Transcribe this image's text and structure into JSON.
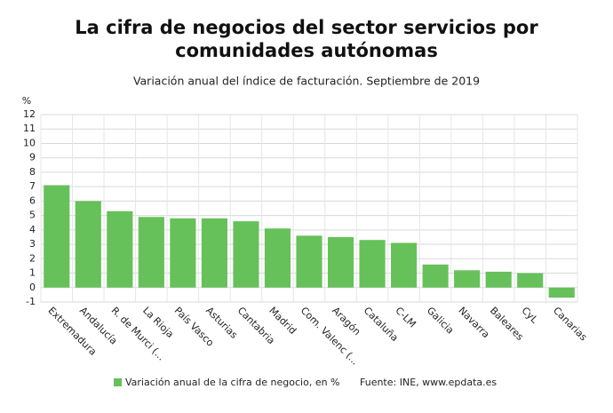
{
  "chart_data": {
    "type": "bar",
    "title": "La cifra de negocios del sector servicios por comunidades autónomas",
    "subtitle": "Variación anual del índice de facturación. Septiembre de 2019",
    "y_label": "%",
    "categories": [
      "Extremadura",
      "Andalucía",
      "R. de Murci (...",
      "La Rioja",
      "País Vasco",
      "Asturias",
      "Cantabria",
      "Madrid",
      "Com. Valenc (...",
      "Aragón",
      "Cataluña",
      "C-LM",
      "Galicia",
      "Navarra",
      "Baleares",
      "CyL",
      "Canarias"
    ],
    "series": [
      {
        "name": "Variación anual de la cifra de negocio, en %",
        "color": "#66c15a",
        "values": [
          7.1,
          6.0,
          5.3,
          4.9,
          4.8,
          4.8,
          4.6,
          4.1,
          3.6,
          3.5,
          3.3,
          3.1,
          1.6,
          1.2,
          1.1,
          1.0,
          -0.7
        ]
      }
    ],
    "ylim": [
      -1,
      12
    ],
    "yticks": [
      -1,
      0,
      1,
      2,
      3,
      4,
      5,
      6,
      7,
      8,
      9,
      10,
      11,
      12
    ],
    "grid": true,
    "source": "Fuente: INE, www.epdata.es"
  }
}
